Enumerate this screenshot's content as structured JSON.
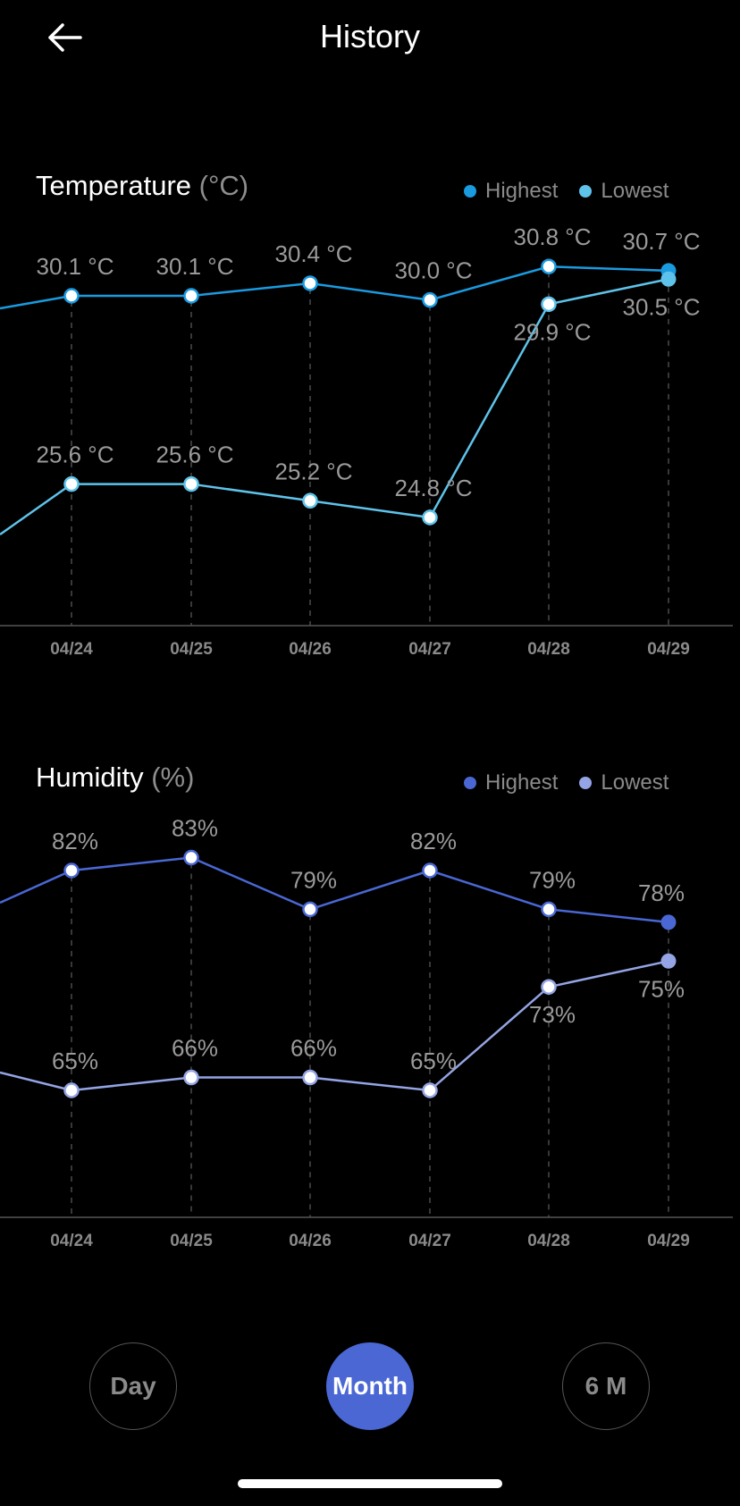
{
  "header": {
    "title": "History",
    "back_icon": "arrow-left-icon"
  },
  "temperature": {
    "title": "Temperature",
    "unit": "(°C)",
    "legend": [
      {
        "label": "Highest",
        "color": "#1a9be0"
      },
      {
        "label": "Lowest",
        "color": "#5ec3ea"
      }
    ]
  },
  "humidity": {
    "title": "Humidity",
    "unit": "(%)",
    "legend": [
      {
        "label": "Highest",
        "color": "#4a67d4"
      },
      {
        "label": "Lowest",
        "color": "#94a4e4"
      }
    ]
  },
  "period": {
    "options": [
      "Day",
      "Month",
      "6 M"
    ],
    "selected": "Month",
    "active_color": "#4a67d4"
  },
  "chart_data": [
    {
      "type": "line",
      "title": "Temperature (°C)",
      "categories": [
        "04/24",
        "04/25",
        "04/26",
        "04/27",
        "04/28",
        "04/29"
      ],
      "series": [
        {
          "name": "Highest",
          "color": "#1a9be0",
          "values": [
            30.1,
            30.1,
            30.4,
            30.0,
            30.8,
            30.7
          ],
          "labels": [
            "30.1 °C",
            "30.1 °C",
            "30.4 °C",
            "30.0 °C",
            "30.8 °C",
            "30.7 °C"
          ]
        },
        {
          "name": "Lowest",
          "color": "#5ec3ea",
          "values": [
            25.6,
            25.6,
            25.2,
            24.8,
            29.9,
            30.5
          ],
          "labels": [
            "25.6 °C",
            "25.6 °C",
            "25.2 °C",
            "24.8 °C",
            "29.9 °C",
            "30.5 °C"
          ]
        }
      ],
      "grid": true
    },
    {
      "type": "line",
      "title": "Humidity (%)",
      "categories": [
        "04/24",
        "04/25",
        "04/26",
        "04/27",
        "04/28",
        "04/29"
      ],
      "series": [
        {
          "name": "Highest",
          "color": "#4a67d4",
          "values": [
            82,
            83,
            79,
            82,
            79,
            78
          ],
          "labels": [
            "82%",
            "83%",
            "79%",
            "82%",
            "79%",
            "78%"
          ]
        },
        {
          "name": "Lowest",
          "color": "#94a4e4",
          "values": [
            65,
            66,
            66,
            65,
            73,
            75
          ],
          "labels": [
            "65%",
            "66%",
            "66%",
            "65%",
            "73%",
            "75%"
          ]
        }
      ],
      "grid": true
    }
  ]
}
